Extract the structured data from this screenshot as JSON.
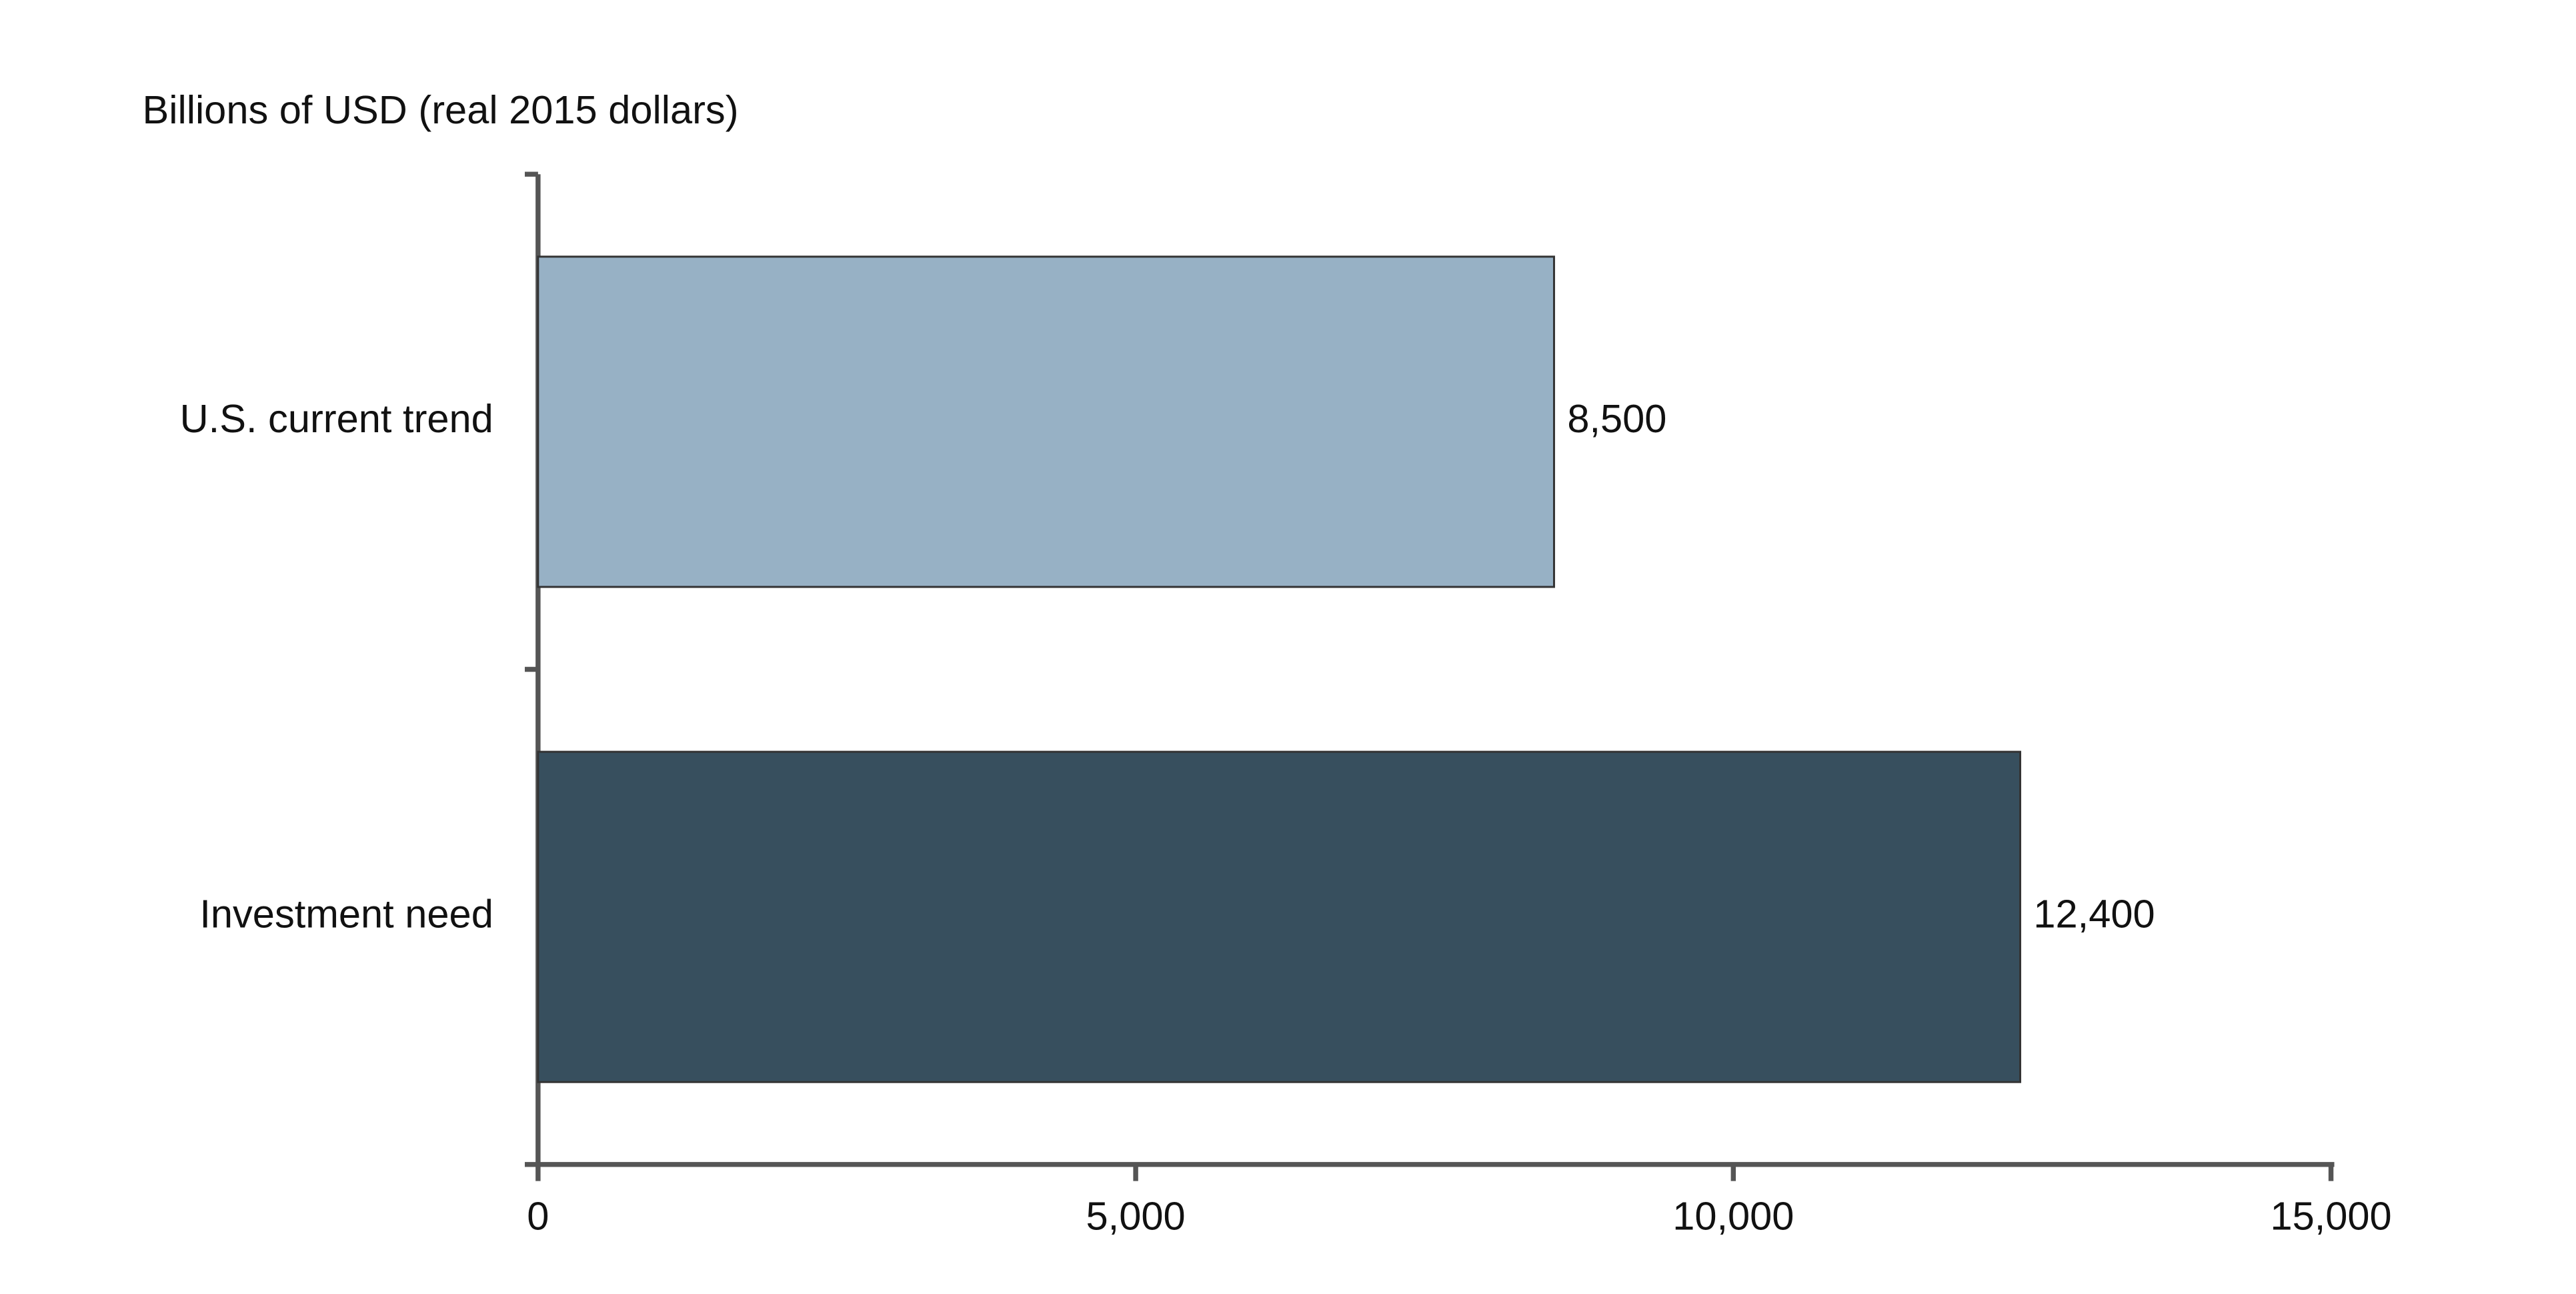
{
  "chart_data": {
    "type": "hbar",
    "title": "Billions of USD (real 2015 dollars)",
    "categories": [
      "U.S. current trend",
      "Investment need"
    ],
    "values": [
      8500,
      12400
    ],
    "value_labels": [
      "8,500",
      "12,400"
    ],
    "colors": [
      "#97b1c5",
      "#374f5e"
    ],
    "xlim": [
      0,
      15000
    ],
    "xticks": [
      0,
      {
        "value": 5000,
        "label": "5,000"
      },
      {
        "value": 10000,
        "label": "10,000"
      },
      {
        "value": 15000,
        "label": "15,000"
      }
    ],
    "grid": false
  }
}
